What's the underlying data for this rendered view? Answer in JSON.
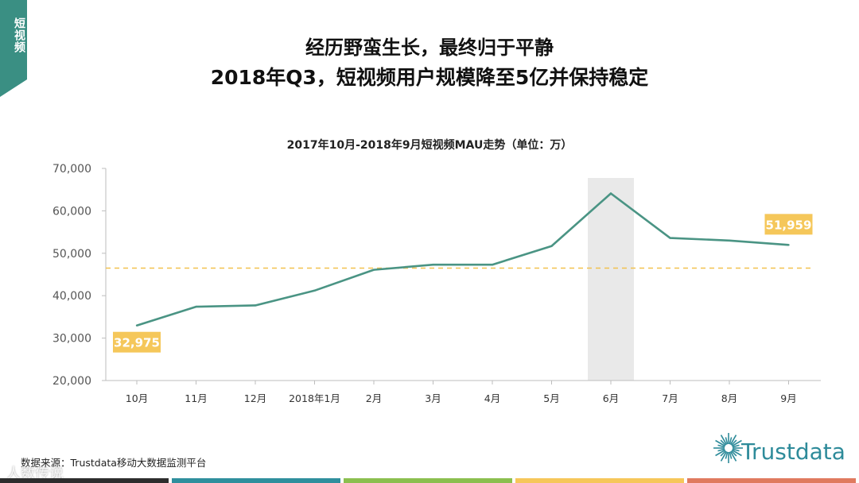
{
  "side_tab": {
    "label": "短视频",
    "color": "#3a8f83"
  },
  "headline": {
    "line1": "经历野蛮生长，最终归于平静",
    "line2": "2018年Q3，短视频用户规模降至5亿并保持稳定"
  },
  "chart_data": {
    "type": "line",
    "title": "2017年10月-2018年9月短视频MAU走势（单位：万）",
    "categories": [
      "10月",
      "11月",
      "12月",
      "2018年1月",
      "2月",
      "3月",
      "4月",
      "5月",
      "6月",
      "7月",
      "8月",
      "9月"
    ],
    "series": [
      {
        "values": [
          32975,
          37400,
          37700,
          41200,
          46100,
          47300,
          47300,
          51700,
          64100,
          53600,
          53000,
          51959
        ],
        "color": "#4a9484"
      }
    ],
    "ylim": [
      20000,
      70000
    ],
    "yticks": [
      "20,000",
      "30,000",
      "40,000",
      "50,000",
      "60,000",
      "70,000"
    ],
    "ytick_values": [
      20000,
      30000,
      40000,
      50000,
      60000,
      70000
    ],
    "reference_line": {
      "value": 46500,
      "color": "#f2c14e",
      "style": "dashed"
    },
    "highlight_category": "6月",
    "data_labels": [
      {
        "category": "10月",
        "text": "32,975"
      },
      {
        "category": "9月",
        "text": "51,959"
      }
    ],
    "label_color": "#f5c75a",
    "grid": false
  },
  "source": "数据来源：Trustdata移动大数据监测平台",
  "logo": {
    "text": "Trustdata",
    "color": "#2e8b9a"
  },
  "watermark": "人数传说",
  "bottom_bar_colors": [
    "#2d2d2d",
    "#2f8f9d",
    "#8bbf4f",
    "#f6c75a",
    "#e07a5f"
  ]
}
